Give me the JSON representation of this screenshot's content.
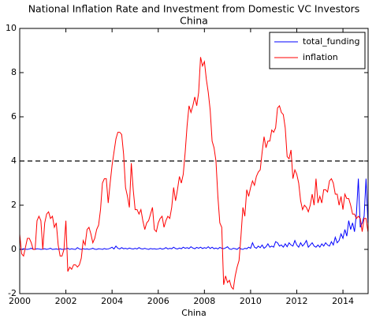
{
  "chart_data": {
    "type": "line",
    "title": "National Inflation Rate and Investment from Domestic VC Investors",
    "subtitle": "China",
    "xlabel": "China",
    "xlim": [
      2000,
      2015.09
    ],
    "xticks": [
      2000,
      2002,
      2004,
      2006,
      2008,
      2010,
      2012,
      2014
    ],
    "ylim": [
      -2,
      10
    ],
    "yticks": [
      -2,
      0,
      2,
      4,
      6,
      8,
      10
    ],
    "reference_line": 4,
    "grid": false,
    "legend": "upper right",
    "x": [
      2000.0,
      2000.083,
      2000.167,
      2000.25,
      2000.333,
      2000.417,
      2000.5,
      2000.583,
      2000.667,
      2000.75,
      2000.833,
      2000.917,
      2001.0,
      2001.083,
      2001.167,
      2001.25,
      2001.333,
      2001.417,
      2001.5,
      2001.583,
      2001.667,
      2001.75,
      2001.833,
      2001.917,
      2002.0,
      2002.083,
      2002.167,
      2002.25,
      2002.333,
      2002.417,
      2002.5,
      2002.583,
      2002.667,
      2002.75,
      2002.833,
      2002.917,
      2003.0,
      2003.083,
      2003.167,
      2003.25,
      2003.333,
      2003.417,
      2003.5,
      2003.583,
      2003.667,
      2003.75,
      2003.833,
      2003.917,
      2004.0,
      2004.083,
      2004.167,
      2004.25,
      2004.333,
      2004.417,
      2004.5,
      2004.583,
      2004.667,
      2004.75,
      2004.833,
      2004.917,
      2005.0,
      2005.083,
      2005.167,
      2005.25,
      2005.333,
      2005.417,
      2005.5,
      2005.583,
      2005.667,
      2005.75,
      2005.833,
      2005.917,
      2006.0,
      2006.083,
      2006.167,
      2006.25,
      2006.333,
      2006.417,
      2006.5,
      2006.583,
      2006.667,
      2006.75,
      2006.833,
      2006.917,
      2007.0,
      2007.083,
      2007.167,
      2007.25,
      2007.333,
      2007.417,
      2007.5,
      2007.583,
      2007.667,
      2007.75,
      2007.833,
      2007.917,
      2008.0,
      2008.083,
      2008.167,
      2008.25,
      2008.333,
      2008.417,
      2008.5,
      2008.583,
      2008.667,
      2008.75,
      2008.833,
      2008.917,
      2009.0,
      2009.083,
      2009.167,
      2009.25,
      2009.333,
      2009.417,
      2009.5,
      2009.583,
      2009.667,
      2009.75,
      2009.833,
      2009.917,
      2010.0,
      2010.083,
      2010.167,
      2010.25,
      2010.333,
      2010.417,
      2010.5,
      2010.583,
      2010.667,
      2010.75,
      2010.833,
      2010.917,
      2011.0,
      2011.083,
      2011.167,
      2011.25,
      2011.333,
      2011.417,
      2011.5,
      2011.583,
      2011.667,
      2011.75,
      2011.833,
      2011.917,
      2012.0,
      2012.083,
      2012.167,
      2012.25,
      2012.333,
      2012.417,
      2012.5,
      2012.583,
      2012.667,
      2012.75,
      2012.833,
      2012.917,
      2013.0,
      2013.083,
      2013.167,
      2013.25,
      2013.333,
      2013.417,
      2013.5,
      2013.583,
      2013.667,
      2013.75,
      2013.833,
      2013.917,
      2014.0,
      2014.083,
      2014.167,
      2014.25,
      2014.333,
      2014.417,
      2014.5,
      2014.583,
      2014.667,
      2014.75,
      2014.833,
      2014.917,
      2015.0,
      2015.083
    ],
    "series": [
      {
        "name": "total_funding",
        "color": "#0000ff",
        "values": [
          0.02,
          0.0,
          0.03,
          0.01,
          0.0,
          0.02,
          0.05,
          0.01,
          0.0,
          0.03,
          0.02,
          0.0,
          0.01,
          0.03,
          0.0,
          0.02,
          0.05,
          0.0,
          0.01,
          0.02,
          0.0,
          0.03,
          0.0,
          0.01,
          0.02,
          0.05,
          0.0,
          0.03,
          0.01,
          0.0,
          0.08,
          0.02,
          0.0,
          0.03,
          0.01,
          0.02,
          0.0,
          0.02,
          0.05,
          0.01,
          0.0,
          0.03,
          0.02,
          0.0,
          0.04,
          0.01,
          0.02,
          0.05,
          0.1,
          0.02,
          0.15,
          0.05,
          0.02,
          0.08,
          0.03,
          0.05,
          0.02,
          0.06,
          0.03,
          0.02,
          0.05,
          0.02,
          0.08,
          0.03,
          0.02,
          0.05,
          0.02,
          0.0,
          0.04,
          0.02,
          0.03,
          0.01,
          0.02,
          0.05,
          0.01,
          0.03,
          0.08,
          0.02,
          0.05,
          0.03,
          0.1,
          0.04,
          0.02,
          0.06,
          0.03,
          0.1,
          0.05,
          0.08,
          0.04,
          0.12,
          0.06,
          0.03,
          0.09,
          0.05,
          0.1,
          0.04,
          0.08,
          0.05,
          0.12,
          0.04,
          0.1,
          0.03,
          0.06,
          0.02,
          0.09,
          0.05,
          0.03,
          0.07,
          0.12,
          0.02,
          0.0,
          0.05,
          0.03,
          0.0,
          0.08,
          0.02,
          0.0,
          0.05,
          0.03,
          0.1,
          0.05,
          0.3,
          0.1,
          0.05,
          0.15,
          0.08,
          0.2,
          0.05,
          0.12,
          0.25,
          0.1,
          0.15,
          0.1,
          0.35,
          0.3,
          0.15,
          0.2,
          0.1,
          0.25,
          0.12,
          0.3,
          0.2,
          0.15,
          0.4,
          0.2,
          0.1,
          0.3,
          0.15,
          0.25,
          0.4,
          0.1,
          0.2,
          0.3,
          0.15,
          0.1,
          0.2,
          0.1,
          0.25,
          0.15,
          0.3,
          0.2,
          0.15,
          0.35,
          0.2,
          0.55,
          0.3,
          0.4,
          0.7,
          0.5,
          0.9,
          0.6,
          1.3,
          0.9,
          1.2,
          0.8,
          1.6,
          3.2,
          1.0,
          1.2,
          1.5,
          3.2,
          1.2
        ]
      },
      {
        "name": "inflation",
        "color": "#ff0000",
        "values": [
          0.7,
          -0.2,
          -0.3,
          0.1,
          0.5,
          0.5,
          0.3,
          0.0,
          0.0,
          1.3,
          1.5,
          1.3,
          0.0,
          1.2,
          1.6,
          1.7,
          1.4,
          1.5,
          1.0,
          1.2,
          0.2,
          -0.3,
          -0.3,
          0.0,
          1.3,
          -1.0,
          -0.8,
          -0.9,
          -0.7,
          -0.7,
          -0.8,
          -0.7,
          -0.4,
          0.4,
          0.2,
          0.9,
          1.0,
          0.7,
          0.3,
          0.5,
          0.9,
          1.1,
          1.8,
          3.0,
          3.2,
          3.2,
          2.1,
          3.0,
          3.8,
          4.4,
          5.0,
          5.3,
          5.3,
          5.2,
          4.3,
          2.8,
          2.4,
          1.9,
          3.9,
          2.7,
          1.8,
          1.8,
          1.6,
          1.8,
          1.3,
          0.9,
          1.2,
          1.3,
          1.6,
          1.9,
          0.9,
          0.8,
          1.2,
          1.4,
          1.5,
          1.0,
          1.3,
          1.5,
          1.4,
          1.9,
          2.8,
          2.2,
          2.7,
          3.3,
          3.0,
          3.4,
          4.4,
          5.6,
          6.5,
          6.2,
          6.5,
          6.9,
          6.5,
          7.1,
          8.7,
          8.3,
          8.5,
          7.7,
          7.1,
          6.3,
          4.9,
          4.6,
          4.0,
          2.4,
          1.2,
          1.0,
          -1.6,
          -1.2,
          -1.5,
          -1.4,
          -1.7,
          -1.8,
          -1.2,
          -0.8,
          -0.5,
          0.6,
          1.9,
          1.5,
          2.7,
          2.4,
          2.8,
          3.1,
          2.9,
          3.3,
          3.5,
          3.6,
          4.4,
          5.1,
          4.6,
          4.9,
          4.9,
          5.4,
          5.3,
          5.5,
          6.4,
          6.5,
          6.2,
          6.1,
          5.5,
          4.2,
          4.1,
          4.5,
          3.2,
          3.6,
          3.4,
          3.0,
          2.2,
          1.8,
          2.0,
          1.9,
          1.7,
          2.0,
          2.5,
          2.0,
          3.2,
          2.1,
          2.4,
          2.1,
          2.7,
          2.7,
          2.6,
          3.1,
          3.2,
          3.0,
          2.5,
          2.5,
          2.0,
          2.4,
          1.8,
          2.5,
          2.3,
          2.3,
          2.0,
          1.6,
          1.6,
          1.4,
          1.5,
          1.4,
          0.8,
          1.4,
          1.4,
          0.8
        ]
      }
    ]
  }
}
